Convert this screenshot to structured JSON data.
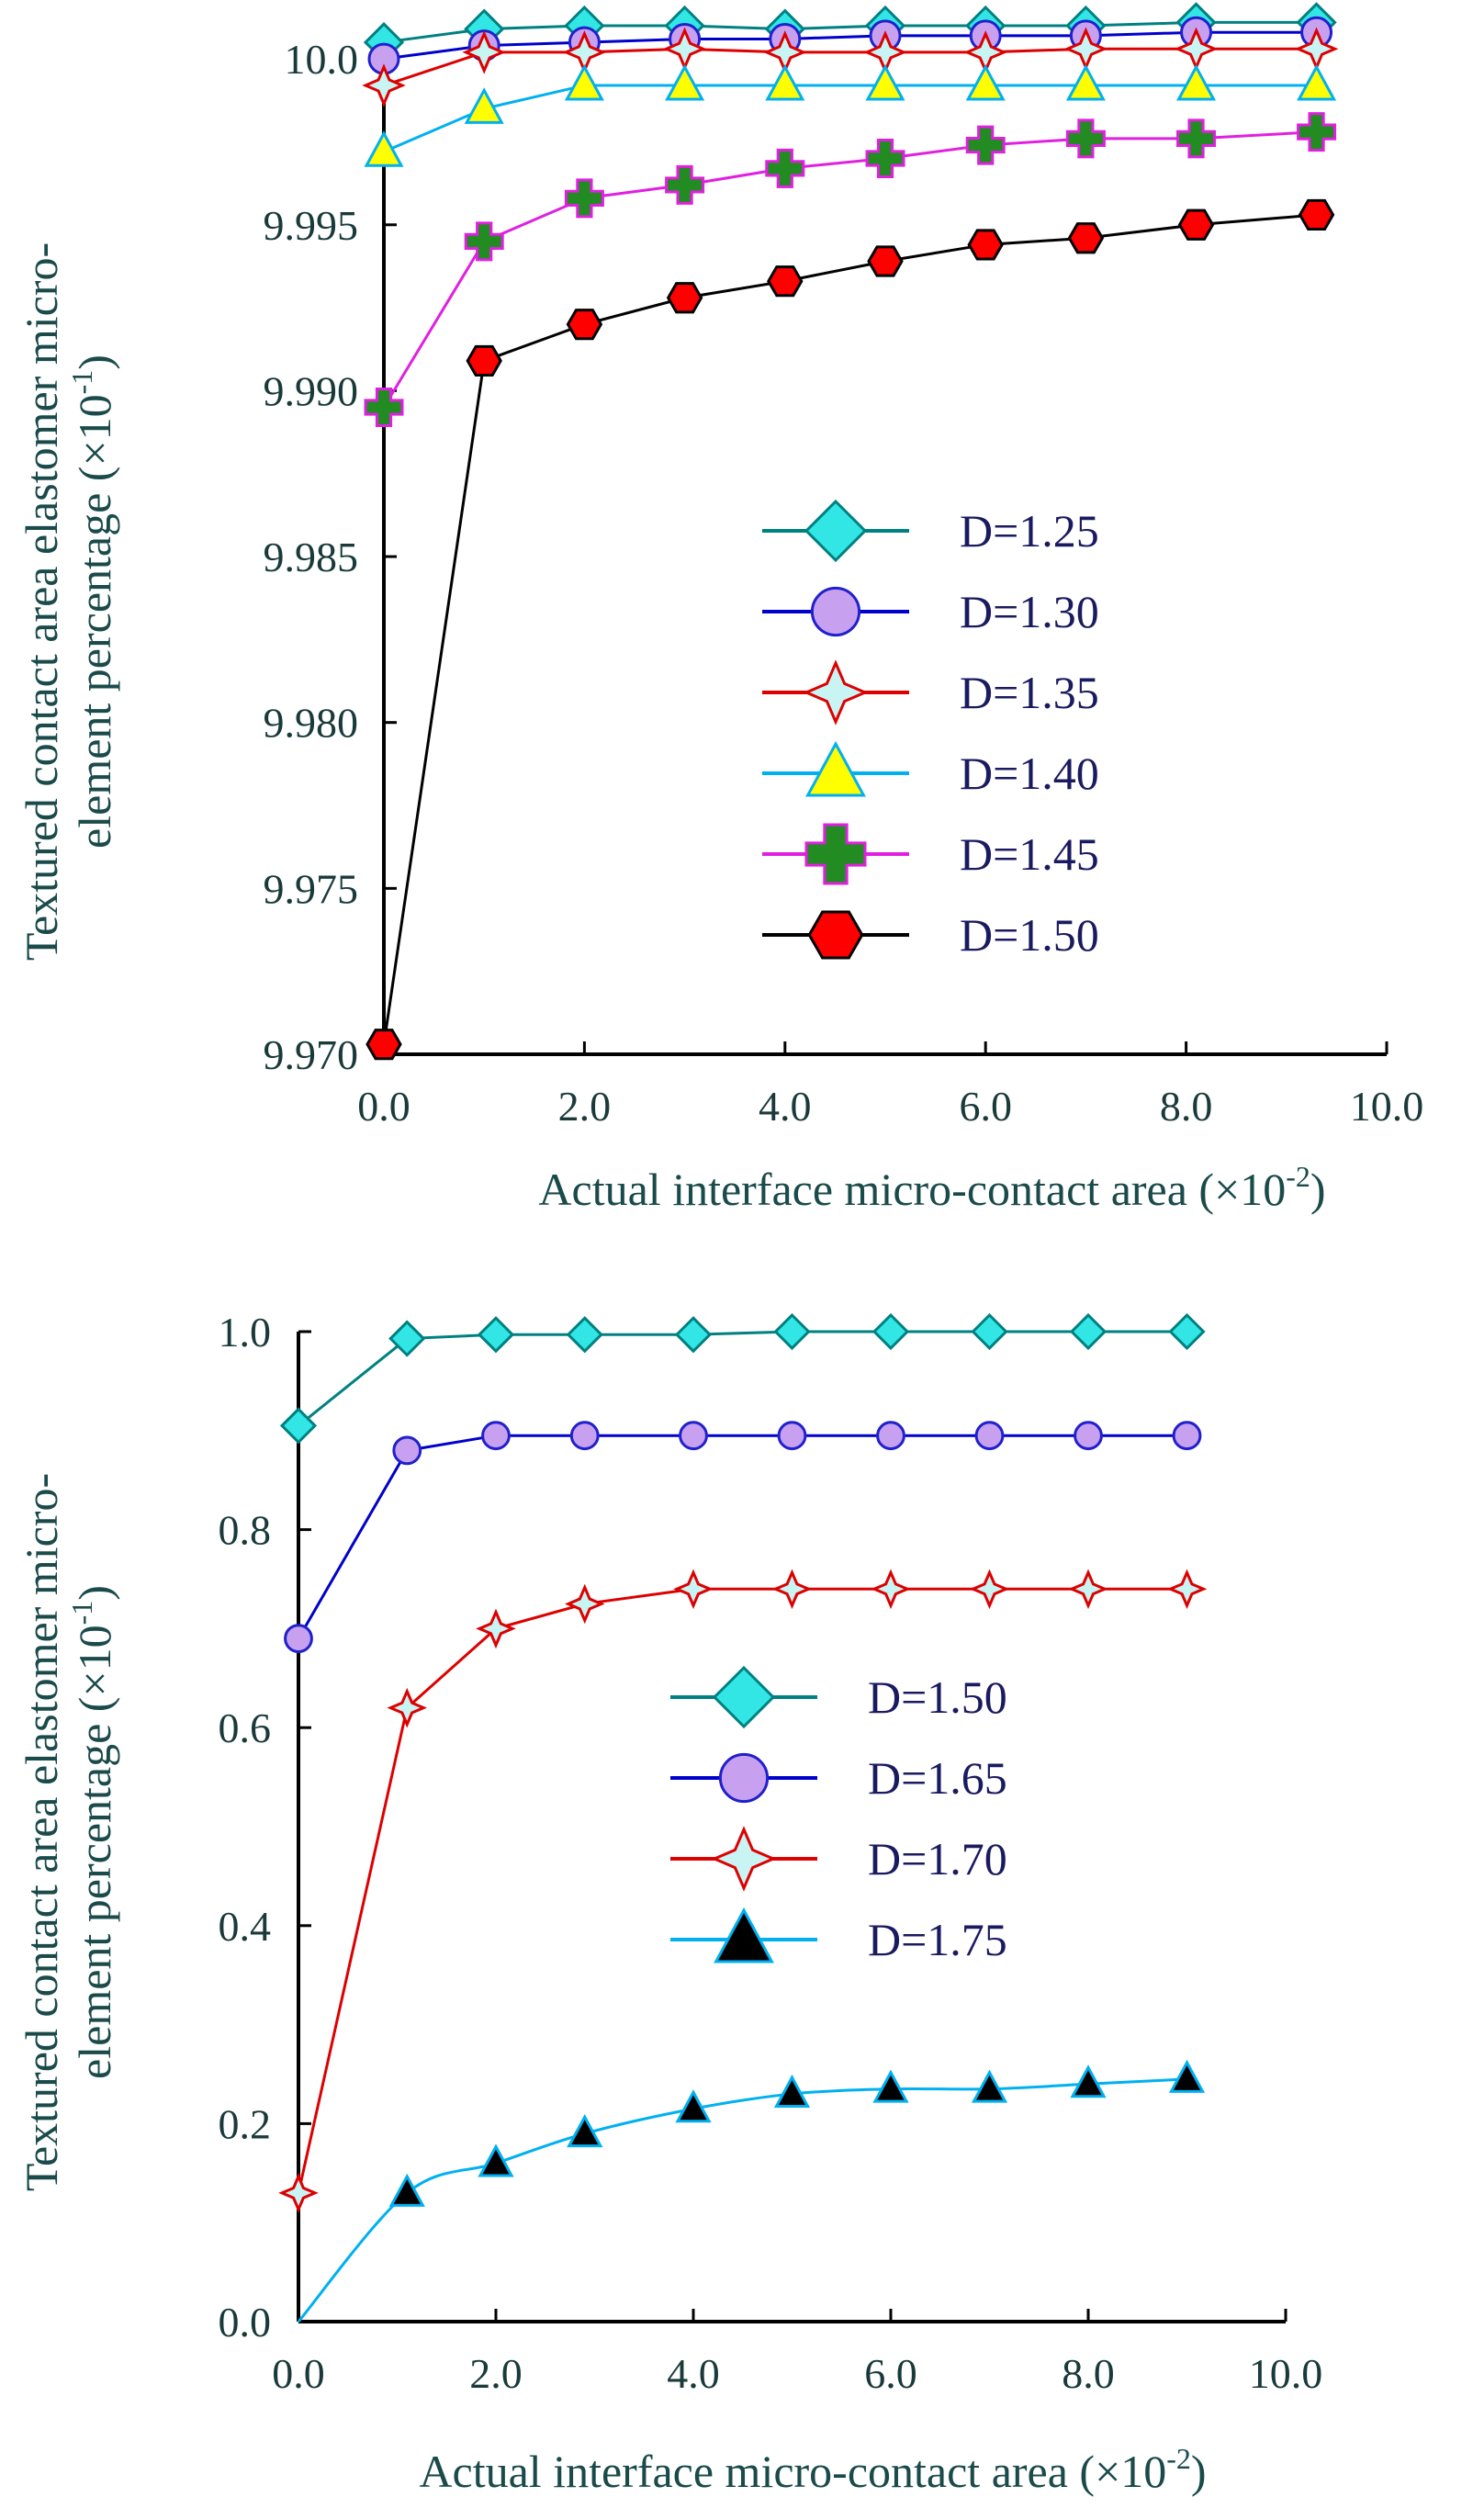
{
  "chart_data": [
    {
      "type": "line",
      "xlabel": "Actual interface micro-contact area (×10",
      "xlabel_exp": "-2",
      "xlabel_close": ")",
      "ylabel_line1": "Textured contact area elastomer  micro-",
      "ylabel_line2": "element percentage (×10",
      "ylabel_exp": "-1",
      "ylabel_close": ")",
      "xlim": [
        0,
        10
      ],
      "ylim": [
        9.97,
        10.001
      ],
      "xticks": [
        0,
        2,
        4,
        6,
        8,
        10
      ],
      "xtick_labels": [
        "0.0",
        "2.0",
        "4.0",
        "6.0",
        "8.0",
        "10.0"
      ],
      "yticks": [
        9.97,
        9.975,
        9.98,
        9.985,
        9.99,
        9.995,
        10.0
      ],
      "ytick_labels": [
        "9.970",
        "9.975",
        "9.980",
        "9.985",
        "9.990",
        "9.995",
        "10.0"
      ],
      "legend_position": "center-right",
      "series": [
        {
          "name": "D=1.25",
          "marker": "diamond",
          "line_color": "#008080",
          "fill": "#33e6e6",
          "stroke": "#008080",
          "x": [
            0,
            1,
            2,
            3,
            4,
            5,
            6,
            7,
            8.1,
            9.3
          ],
          "y": [
            10.0005,
            10.0009,
            10.001,
            10.001,
            10.0009,
            10.001,
            10.001,
            10.001,
            10.0011,
            10.0011
          ]
        },
        {
          "name": "D=1.30",
          "marker": "circle",
          "line_color": "#0000cc",
          "fill": "#c8a0f0",
          "stroke": "#2020cc",
          "x": [
            0,
            1,
            2,
            3,
            4,
            5,
            6,
            7,
            8.1,
            9.3
          ],
          "y": [
            10.0,
            10.0004,
            10.0005,
            10.0006,
            10.0006,
            10.0007,
            10.0007,
            10.0007,
            10.0008,
            10.0008
          ]
        },
        {
          "name": "D=1.35",
          "marker": "star4",
          "line_color": "#dd0000",
          "fill": "#c8f4f4",
          "stroke": "#dd0000",
          "x": [
            0,
            1,
            2,
            3,
            4,
            5,
            6,
            7,
            8.1,
            9.3
          ],
          "y": [
            9.9992,
            10.0002,
            10.0002,
            10.0003,
            10.0002,
            10.0002,
            10.0002,
            10.0003,
            10.0003,
            10.0003
          ]
        },
        {
          "name": "D=1.40",
          "marker": "triangle",
          "line_color": "#00b0f0",
          "fill": "#ffff00",
          "stroke": "#00b0f0",
          "x": [
            0,
            1,
            2,
            3,
            4,
            5,
            6,
            7,
            8.1,
            9.3
          ],
          "y": [
            9.9972,
            9.9985,
            9.9992,
            9.9992,
            9.9992,
            9.9992,
            9.9992,
            9.9992,
            9.9992,
            9.9992
          ]
        },
        {
          "name": "D=1.45",
          "marker": "plus",
          "line_color": "#e020e0",
          "fill": "#228b22",
          "stroke": "#e020e0",
          "x": [
            0,
            1,
            2,
            3,
            4,
            5,
            6,
            7,
            8.1,
            9.3
          ],
          "y": [
            9.9895,
            9.9945,
            9.9958,
            9.9962,
            9.9967,
            9.997,
            9.9974,
            9.9976,
            9.9976,
            9.9978
          ]
        },
        {
          "name": "D=1.50",
          "marker": "hexagon",
          "line_color": "#000000",
          "fill": "#ff0000",
          "stroke": "#000000",
          "x": [
            0,
            1,
            2,
            3,
            4,
            5,
            6,
            7,
            8.1,
            9.3
          ],
          "y": [
            9.9703,
            9.9909,
            9.992,
            9.9928,
            9.9933,
            9.9939,
            9.9944,
            9.9946,
            9.995,
            9.9953
          ]
        }
      ]
    },
    {
      "type": "line",
      "xlabel": "Actual interface micro-contact area (×10",
      "xlabel_exp": "-2",
      "xlabel_close": ")",
      "ylabel_line1": "Textured contact area elastomer  micro-",
      "ylabel_line2": "element percentage (×10",
      "ylabel_exp": "-1",
      "ylabel_close": ")",
      "xlim": [
        0,
        10
      ],
      "ylim": [
        0,
        1.0
      ],
      "xticks": [
        0,
        2,
        4,
        6,
        8,
        10
      ],
      "xtick_labels": [
        "0.0",
        "2.0",
        "4.0",
        "6.0",
        "8.0",
        "10.0"
      ],
      "yticks": [
        0,
        0.2,
        0.4,
        0.6,
        0.8,
        1.0
      ],
      "ytick_labels": [
        "0.0",
        "0.2",
        "0.4",
        "0.6",
        "0.8",
        "1.0"
      ],
      "legend_position": "center-right",
      "series": [
        {
          "name": "D=1.50",
          "marker": "diamond",
          "line_color": "#008080",
          "fill": "#33e6e6",
          "stroke": "#008080",
          "x": [
            0,
            1.1,
            2,
            2.9,
            4,
            5,
            6,
            7,
            8,
            9
          ],
          "y": [
            0.905,
            0.993,
            0.997,
            0.997,
            0.997,
            1.0,
            1.0,
            1.0,
            1.0,
            1.0
          ]
        },
        {
          "name": "D=1.65",
          "marker": "circle",
          "line_color": "#0000cc",
          "fill": "#c8a0f0",
          "stroke": "#2020cc",
          "x": [
            0,
            1.1,
            2,
            2.9,
            4,
            5,
            6,
            7,
            8,
            9
          ],
          "y": [
            0.69,
            0.88,
            0.895,
            0.895,
            0.895,
            0.895,
            0.895,
            0.895,
            0.895,
            0.895
          ]
        },
        {
          "name": "D=1.70",
          "marker": "star4",
          "line_color": "#dd0000",
          "fill": "#c8f4f4",
          "stroke": "#dd0000",
          "x": [
            0,
            1.1,
            2,
            2.9,
            4,
            5,
            6,
            7,
            8,
            9
          ],
          "y": [
            0.13,
            0.62,
            0.7,
            0.725,
            0.74,
            0.74,
            0.74,
            0.74,
            0.74,
            0.74
          ]
        },
        {
          "name": "D=1.75",
          "marker": "triangle",
          "line_color": "#00b0f0",
          "fill": "#000000",
          "stroke": "#00b0f0",
          "x": [
            0,
            1.1,
            2,
            2.9,
            4,
            5,
            6,
            7,
            8,
            9
          ],
          "y": [
            0.0,
            0.13,
            0.16,
            0.19,
            0.215,
            0.23,
            0.235,
            0.235,
            0.24,
            0.245
          ]
        }
      ]
    }
  ]
}
